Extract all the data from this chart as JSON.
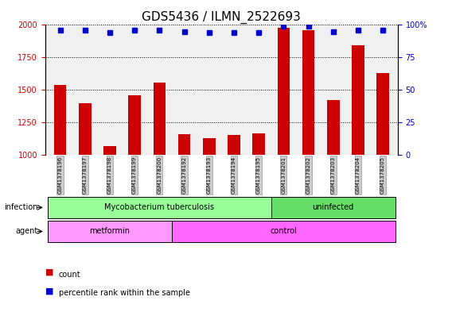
{
  "title": "GDS5436 / ILMN_2522693",
  "samples": [
    "GSM1378196",
    "GSM1378197",
    "GSM1378198",
    "GSM1378199",
    "GSM1378200",
    "GSM1378192",
    "GSM1378193",
    "GSM1378194",
    "GSM1378195",
    "GSM1378201",
    "GSM1378202",
    "GSM1378203",
    "GSM1378204",
    "GSM1378205"
  ],
  "counts": [
    1535,
    1395,
    1065,
    1455,
    1555,
    1155,
    1130,
    1150,
    1165,
    1980,
    1960,
    1420,
    1845,
    1630
  ],
  "percentile_ranks": [
    96,
    96,
    94,
    96,
    96,
    95,
    94,
    94,
    94,
    99,
    99,
    95,
    96,
    96
  ],
  "bar_color": "#cc0000",
  "dot_color": "#0000cc",
  "ylim_left": [
    1000,
    2000
  ],
  "ylim_right": [
    0,
    100
  ],
  "yticks_left": [
    1000,
    1250,
    1500,
    1750,
    2000
  ],
  "yticks_right": [
    0,
    25,
    50,
    75,
    100
  ],
  "infection_groups": [
    {
      "label": "Mycobacterium tuberculosis",
      "start": 0,
      "end": 9,
      "color": "#99ff99"
    },
    {
      "label": "uninfected",
      "start": 9,
      "end": 14,
      "color": "#66dd66"
    }
  ],
  "agent_groups": [
    {
      "label": "metformin",
      "start": 0,
      "end": 5,
      "color": "#ff99ff"
    },
    {
      "label": "control",
      "start": 5,
      "end": 14,
      "color": "#ff66ff"
    }
  ],
  "infection_label": "infection",
  "agent_label": "agent",
  "legend_count_label": "count",
  "legend_pct_label": "percentile rank within the sample",
  "background_color": "#ffffff",
  "plot_bg_color": "#f0f0f0",
  "grid_color": "#000000",
  "title_fontsize": 11,
  "tick_fontsize": 7,
  "label_fontsize": 8
}
